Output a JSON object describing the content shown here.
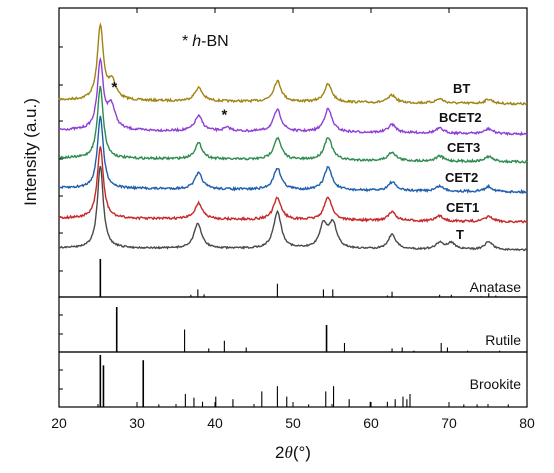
{
  "chart_data": {
    "type": "line",
    "xlabel_prefix": "2",
    "xlabel_symbol": "θ",
    "xlabel_suffix": "(°)",
    "ylabel": "Intensity (a.u.)",
    "xlim": [
      20,
      80
    ],
    "x_ticks": [
      20,
      30,
      40,
      50,
      60,
      70,
      80
    ],
    "annotation": {
      "star": "*",
      "italic": "h",
      "rest": "-BN"
    },
    "hbn_markers": [
      {
        "x": 26.7,
        "series": "BCET2"
      },
      {
        "x": 41.6,
        "series": "BCET2"
      }
    ],
    "peak_unit": "°",
    "series": [
      {
        "name": "BT",
        "color": "#a08414",
        "peaks": [
          [
            25.3,
            1.0
          ],
          [
            26.8,
            0.25
          ],
          [
            37.9,
            0.18
          ],
          [
            48.0,
            0.28
          ],
          [
            54.5,
            0.24
          ],
          [
            62.7,
            0.1
          ],
          [
            68.8,
            0.06
          ],
          [
            75.1,
            0.06
          ]
        ]
      },
      {
        "name": "BCET2",
        "color": "#8f3fd6",
        "peaks": [
          [
            25.3,
            1.0
          ],
          [
            26.7,
            0.35
          ],
          [
            37.9,
            0.22
          ],
          [
            41.6,
            0.05
          ],
          [
            48.0,
            0.32
          ],
          [
            54.5,
            0.34
          ],
          [
            62.7,
            0.12
          ],
          [
            68.8,
            0.07
          ],
          [
            75.1,
            0.07
          ]
        ]
      },
      {
        "name": "CET3",
        "color": "#2e8b4f",
        "peaks": [
          [
            25.3,
            1.0
          ],
          [
            37.9,
            0.22
          ],
          [
            48.0,
            0.3
          ],
          [
            54.5,
            0.32
          ],
          [
            62.7,
            0.12
          ],
          [
            68.8,
            0.07
          ],
          [
            75.1,
            0.07
          ]
        ]
      },
      {
        "name": "CET2",
        "color": "#1f5faa",
        "peaks": [
          [
            25.3,
            1.0
          ],
          [
            37.9,
            0.22
          ],
          [
            48.0,
            0.3
          ],
          [
            54.5,
            0.32
          ],
          [
            62.7,
            0.12
          ],
          [
            68.8,
            0.07
          ],
          [
            75.1,
            0.07
          ]
        ]
      },
      {
        "name": "CET1",
        "color": "#c62828",
        "peaks": [
          [
            25.3,
            1.0
          ],
          [
            37.9,
            0.22
          ],
          [
            48.0,
            0.3
          ],
          [
            54.5,
            0.32
          ],
          [
            62.7,
            0.12
          ],
          [
            68.8,
            0.07
          ],
          [
            75.1,
            0.07
          ]
        ]
      },
      {
        "name": "T",
        "color": "#4a4a4a",
        "peaks": [
          [
            25.3,
            1.0
          ],
          [
            37.8,
            0.3
          ],
          [
            48.0,
            0.45
          ],
          [
            53.9,
            0.28
          ],
          [
            55.1,
            0.3
          ],
          [
            62.7,
            0.18
          ],
          [
            68.8,
            0.08
          ],
          [
            70.3,
            0.08
          ],
          [
            75.1,
            0.1
          ]
        ]
      }
    ],
    "references": [
      {
        "name": "Anatase",
        "lines": [
          [
            25.3,
            1.0
          ],
          [
            36.9,
            0.06
          ],
          [
            37.8,
            0.2
          ],
          [
            38.6,
            0.07
          ],
          [
            48.0,
            0.35
          ],
          [
            53.9,
            0.2
          ],
          [
            55.1,
            0.2
          ],
          [
            62.1,
            0.04
          ],
          [
            62.7,
            0.14
          ],
          [
            68.8,
            0.06
          ],
          [
            70.3,
            0.06
          ],
          [
            74.1,
            0.02
          ],
          [
            75.1,
            0.1
          ],
          [
            76.0,
            0.04
          ]
        ]
      },
      {
        "name": "Rutile",
        "lines": [
          [
            27.4,
            1.0
          ],
          [
            36.1,
            0.5
          ],
          [
            39.2,
            0.08
          ],
          [
            41.2,
            0.25
          ],
          [
            44.0,
            0.1
          ],
          [
            54.3,
            0.6
          ],
          [
            56.6,
            0.2
          ],
          [
            62.7,
            0.08
          ],
          [
            64.0,
            0.1
          ],
          [
            65.5,
            0.03
          ],
          [
            69.0,
            0.2
          ],
          [
            69.8,
            0.1
          ],
          [
            72.4,
            0.03
          ],
          [
            76.5,
            0.03
          ]
        ]
      },
      {
        "name": "Brookite",
        "lines": [
          [
            25.3,
            1.0
          ],
          [
            25.7,
            0.8
          ],
          [
            30.8,
            0.9
          ],
          [
            32.8,
            0.05
          ],
          [
            36.2,
            0.25
          ],
          [
            37.3,
            0.18
          ],
          [
            38.4,
            0.1
          ],
          [
            40.1,
            0.2
          ],
          [
            42.3,
            0.15
          ],
          [
            46.0,
            0.3
          ],
          [
            48.0,
            0.4
          ],
          [
            49.2,
            0.2
          ],
          [
            52.0,
            0.05
          ],
          [
            54.2,
            0.3
          ],
          [
            55.2,
            0.4
          ],
          [
            57.2,
            0.15
          ],
          [
            59.9,
            0.1
          ],
          [
            62.1,
            0.1
          ],
          [
            63.1,
            0.15
          ],
          [
            64.1,
            0.2
          ],
          [
            64.6,
            0.15
          ],
          [
            65.0,
            0.25
          ],
          [
            71.9,
            0.05
          ],
          [
            73.6,
            0.05
          ],
          [
            77.6,
            0.05
          ]
        ]
      }
    ]
  }
}
